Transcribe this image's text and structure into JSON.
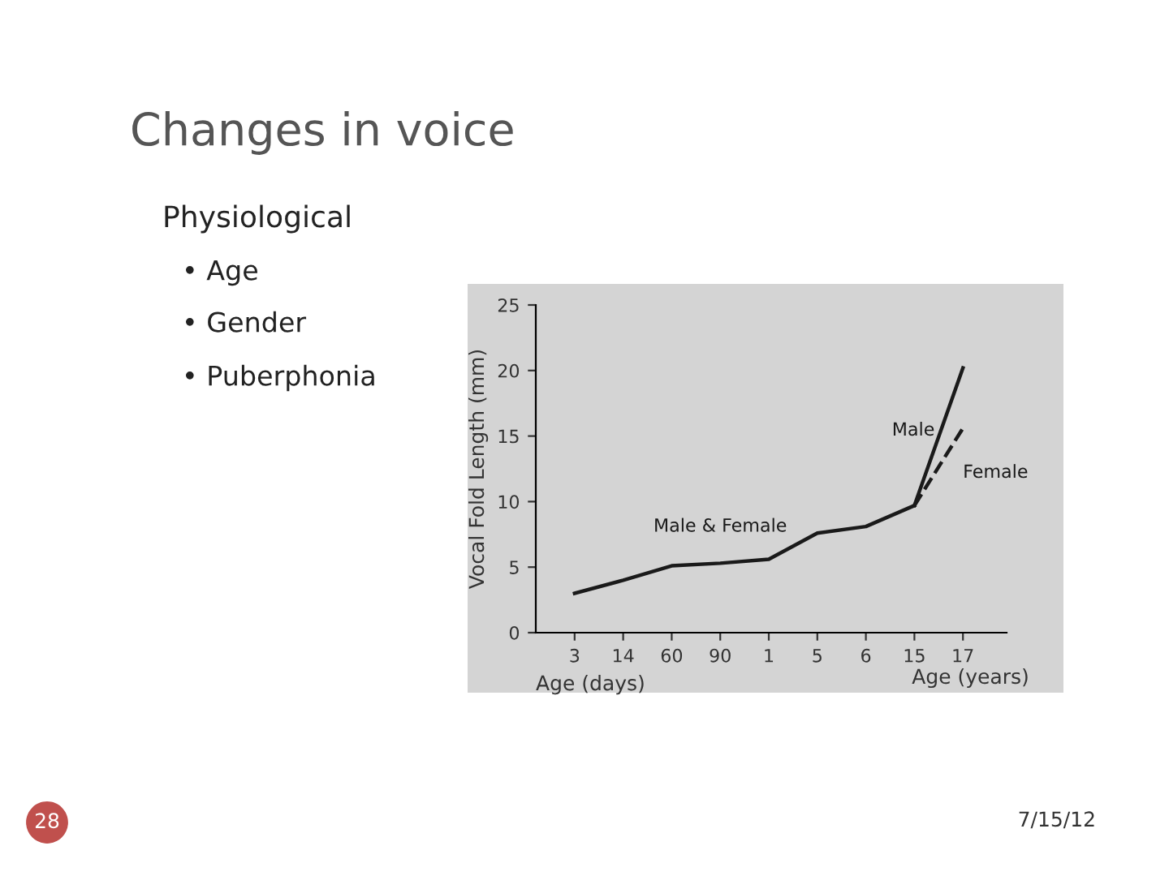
{
  "chart_data": {
    "type": "line",
    "title": "Changes in voice",
    "categories": [
      "3",
      "14",
      "60",
      "90",
      "1",
      "5",
      "6",
      "15",
      "17"
    ],
    "series": [
      {
        "name": "Male & Female",
        "color": "#1a1a1a",
        "line_style": "solid",
        "values": [
          3,
          4,
          5.1,
          5.3,
          5.6,
          7.6,
          8.1,
          9.7,
          null
        ]
      },
      {
        "name": "Male",
        "color": "#1a1a1a",
        "line_style": "solid",
        "values": [
          null,
          null,
          null,
          null,
          null,
          null,
          null,
          9.7,
          20.2
        ]
      },
      {
        "name": "Female",
        "color": "#1a1a1a",
        "line_style": "dashed",
        "values": [
          null,
          null,
          null,
          null,
          null,
          null,
          null,
          9.7,
          15.6
        ]
      }
    ],
    "xlabel": "Age (days)",
    "ylabel": "Vocal Fold Length (mm)",
    "ylim": [
      0,
      25
    ],
    "yticks": [
      0,
      5,
      10,
      15,
      20,
      25
    ],
    "grid": false,
    "legend": false,
    "marker": "none",
    "annotations": [
      "Age (years)",
      "Physiological",
      "• Age",
      "• Gender",
      "• Puberphonia",
      "28",
      "7/15/12"
    ]
  }
}
